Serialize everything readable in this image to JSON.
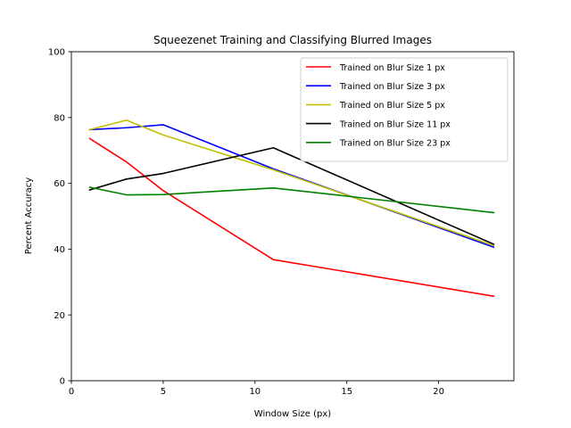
{
  "chart_data": {
    "type": "line",
    "title": "Squeezenet Training and Classifying Blurred Images",
    "xlabel": "Window Size (px)",
    "ylabel": "Percent Accuracy",
    "xlim": [
      0,
      24.1
    ],
    "ylim": [
      0,
      100
    ],
    "xticks": [
      0,
      5,
      10,
      15,
      20
    ],
    "yticks": [
      0,
      20,
      40,
      60,
      80,
      100
    ],
    "grid": false,
    "legend_position": "top-right",
    "x": [
      1,
      3,
      5,
      11,
      23
    ],
    "series": [
      {
        "name": "Trained on Blur Size 1 px",
        "color": "#ff0000",
        "values": [
          73.6,
          66.5,
          57.8,
          36.8,
          25.7
        ]
      },
      {
        "name": "Trained on Blur Size 3 px",
        "color": "#0000ff",
        "values": [
          76.3,
          76.9,
          77.8,
          64.4,
          40.6
        ]
      },
      {
        "name": "Trained on Blur Size 5 px",
        "color": "#bfbf00",
        "values": [
          76.3,
          79.2,
          74.7,
          64.1,
          41.1
        ]
      },
      {
        "name": "Trained on Blur Size 11 px",
        "color": "#000000",
        "values": [
          58.0,
          61.3,
          63.0,
          70.8,
          41.5
        ]
      },
      {
        "name": "Trained on Blur Size 23 px",
        "color": "#008000",
        "values": [
          58.8,
          56.5,
          56.6,
          58.6,
          51.1
        ]
      }
    ]
  }
}
